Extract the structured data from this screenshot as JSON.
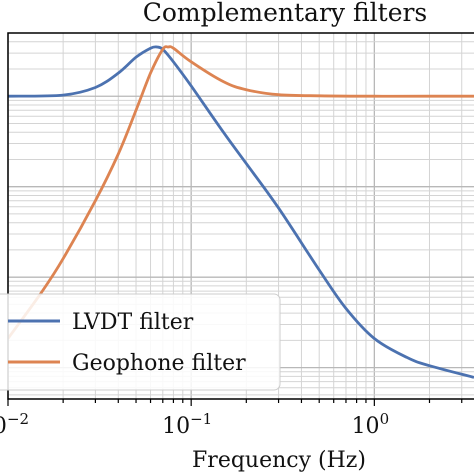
{
  "chart_data": {
    "type": "line",
    "title": "Complementary filters",
    "xlabel": "Frequency (Hz)",
    "ylabel": "",
    "x_scale": "log",
    "y_scale": "log",
    "xlim": [
      0.01,
      3.5
    ],
    "ylim": [
      0.00045,
      5
    ],
    "grid": true,
    "legend_position": "bottom-left",
    "x_tick_labels": [
      {
        "value": 0.01,
        "base": "10",
        "exp": "−2"
      },
      {
        "value": 0.1,
        "base": "10",
        "exp": "−1"
      },
      {
        "value": 1,
        "base": "10",
        "exp": "0"
      }
    ],
    "series": [
      {
        "name": "LVDT filter",
        "color": "#4c72b0",
        "x": [
          0.01,
          0.02,
          0.03,
          0.04,
          0.05,
          0.06,
          0.065,
          0.07,
          0.08,
          0.1,
          0.15,
          0.2,
          0.3,
          0.5,
          0.7,
          1.0,
          1.5,
          2.0,
          3.5
        ],
        "y": [
          1.0,
          1.03,
          1.25,
          1.8,
          2.7,
          3.4,
          3.5,
          3.3,
          2.4,
          1.3,
          0.4,
          0.18,
          0.058,
          0.012,
          0.0045,
          0.0021,
          0.0013,
          0.00105,
          0.00078
        ]
      },
      {
        "name": "Geophone filter",
        "color": "#dd8452",
        "x": [
          0.01,
          0.015,
          0.02,
          0.03,
          0.04,
          0.05,
          0.06,
          0.07,
          0.075,
          0.08,
          0.1,
          0.15,
          0.2,
          0.3,
          0.5,
          1.0,
          2.0,
          3.5
        ],
        "y": [
          0.0021,
          0.0065,
          0.016,
          0.07,
          0.23,
          0.7,
          1.8,
          3.3,
          3.5,
          3.4,
          2.4,
          1.45,
          1.18,
          1.04,
          1.01,
          1.0,
          1.0,
          1.0
        ]
      }
    ]
  }
}
